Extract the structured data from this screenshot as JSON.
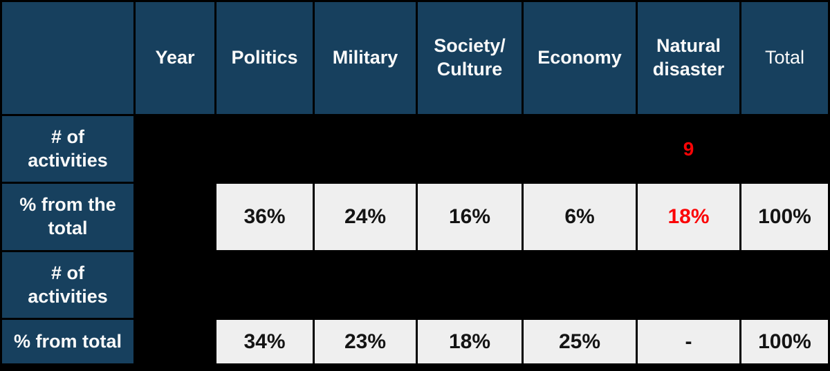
{
  "colors": {
    "header_bg": "#17405E",
    "data_cell_bg": "#EFEFEF",
    "hidden_cell_bg": "#000000",
    "background": "#000000",
    "header_text": "#FAFAFA",
    "data_text": "#141414",
    "highlight_red": "#FB0406"
  },
  "header": {
    "corner": "",
    "year": "Year",
    "politics": "Politics",
    "military": "Military",
    "society": "Society/\nCulture",
    "economy": "Economy",
    "natural": "Natural\ndisaster",
    "total": "Total"
  },
  "rows": [
    {
      "label": "# of\nactivities",
      "year": "",
      "politics": "",
      "military": "",
      "society": "",
      "economy": "",
      "natural": "9",
      "total": ""
    },
    {
      "label": "% from the\ntotal",
      "year": "",
      "politics": "36%",
      "military": "24%",
      "society": "16%",
      "economy": "6%",
      "natural": "18%",
      "total": "100%"
    },
    {
      "label": "# of\nactivities",
      "year": "",
      "politics": "",
      "military": "",
      "society": "",
      "economy": "",
      "natural": "",
      "total": ""
    },
    {
      "label": "% from total",
      "year": "",
      "politics": "34%",
      "military": "23%",
      "society": "18%",
      "economy": "25%",
      "natural": "-",
      "total": "100%"
    }
  ],
  "chart_data": {
    "type": "table",
    "columns": [
      "",
      "Year",
      "Politics",
      "Military",
      "Society/Culture",
      "Economy",
      "Natural disaster",
      "Total"
    ],
    "rows": [
      [
        "# of activities",
        "",
        "",
        "",
        "",
        "",
        "9",
        ""
      ],
      [
        "% from the total",
        "",
        "36%",
        "24%",
        "16%",
        "6%",
        "18%",
        "100%"
      ],
      [
        "# of activities",
        "",
        "",
        "",
        "",
        "",
        "",
        ""
      ],
      [
        "% from total",
        "",
        "34%",
        "23%",
        "18%",
        "25%",
        "-",
        "100%"
      ]
    ],
    "red_highlighted_values": [
      "9",
      "18%"
    ],
    "hidden_black_cells": "Year column and both '# of activities' rows are blacked out except the red 9",
    "legend_position": "none",
    "grid": "black 3px separators between all cells"
  }
}
